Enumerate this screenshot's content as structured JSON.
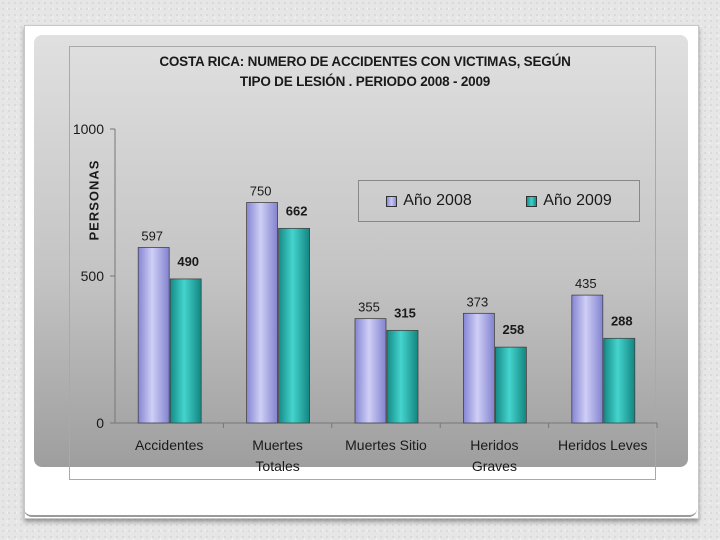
{
  "chart_data": {
    "type": "bar",
    "title": "COSTA RICA: NUMERO DE ACCIDENTES CON VICTIMAS, SEGÚN TIPO DE LESIÓN . PERIODO 2008 - 2009",
    "title_line1": "COSTA RICA: NUMERO DE ACCIDENTES CON VICTIMAS, SEGÚN",
    "title_line2": "TIPO DE LESIÓN . PERIODO 2008 - 2009",
    "xlabel": "",
    "ylabel": "PERSONAS",
    "ylim": [
      0,
      1000
    ],
    "yticks": [
      0,
      500,
      1000
    ],
    "categories": [
      [
        "Accidentes"
      ],
      [
        "Muertes",
        "Totales"
      ],
      [
        "Muertes Sitio"
      ],
      [
        "Heridos",
        "Graves"
      ],
      [
        "Heridos Leves"
      ]
    ],
    "series": [
      {
        "name": "Año 2008",
        "values": [
          597,
          750,
          355,
          373,
          435
        ],
        "color": "#a9a9e8",
        "label_bold": false
      },
      {
        "name": "Año 2009",
        "values": [
          490,
          662,
          315,
          258,
          288
        ],
        "color": "#27b5b0",
        "label_bold": true
      }
    ],
    "legend_position": "top-right",
    "grid": false
  }
}
